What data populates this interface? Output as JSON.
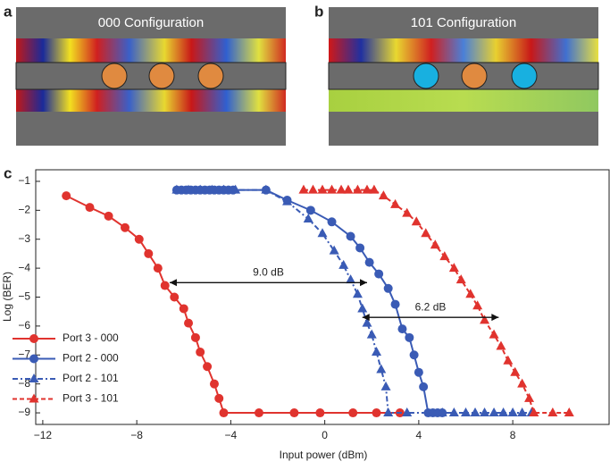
{
  "panels": [
    {
      "label": "a",
      "title": "000 Configuration"
    },
    {
      "label": "b",
      "title": "101 Configuration"
    }
  ],
  "chart_data": {
    "type": "line",
    "panel_label": "c",
    "xlabel": "Input power (dBm)",
    "ylabel": "Log (BER)",
    "xlim": [
      -12.3,
      12.1
    ],
    "ylim": [
      -9.4,
      -0.6
    ],
    "xticks": [
      {
        "value": -12,
        "label": "−12"
      },
      {
        "value": -8,
        "label": "−8"
      },
      {
        "value": -4,
        "label": "−4"
      },
      0,
      4,
      8
    ],
    "yticks": [
      {
        "value": -1,
        "label": "−1"
      },
      {
        "value": -2,
        "label": "−2"
      },
      {
        "value": -3,
        "label": "−3"
      },
      {
        "value": -4,
        "label": "−4"
      },
      {
        "value": -5,
        "label": "−5"
      },
      {
        "value": -6,
        "label": "−6"
      },
      {
        "value": -7,
        "label": "−7"
      },
      {
        "value": -8,
        "label": "−8"
      },
      {
        "value": -9,
        "label": "−9"
      }
    ],
    "legend": "lower left",
    "series": [
      {
        "name": "Port 3 - 000",
        "color": "#e0332e",
        "linestyle": "solid",
        "marker": "circle",
        "x": [
          -11,
          -10,
          -9.2,
          -8.5,
          -7.9,
          -7.5,
          -7.1,
          -6.8,
          -6.4,
          -6.0,
          -5.8,
          -5.5,
          -5.3,
          -5.0,
          -4.7,
          -4.5,
          -4.3,
          -2.8,
          -1.3,
          -0.2,
          1.2,
          2.2,
          3.2
        ],
        "values": [
          -1.5,
          -1.9,
          -2.2,
          -2.6,
          -3.0,
          -3.5,
          -4.0,
          -4.6,
          -5.0,
          -5.4,
          -5.9,
          -6.4,
          -6.9,
          -7.4,
          -8.0,
          -8.5,
          -9,
          -9,
          -9,
          -9,
          -9,
          -9,
          -9
        ]
      },
      {
        "name": "Port 2 - 000",
        "color": "#3a5bb5",
        "linestyle": "solid",
        "marker": "circle",
        "x": [
          -6.3,
          -6.1,
          -5.9,
          -5.7,
          -5.5,
          -5.3,
          -5.1,
          -4.9,
          -4.7,
          -4.5,
          -4.3,
          -4.1,
          -3.9,
          -2.5,
          -1.6,
          -0.6,
          0.3,
          1.1,
          1.5,
          1.9,
          2.3,
          2.7,
          3.0,
          3.3,
          3.6,
          3.8,
          4.0,
          4.2,
          4.4,
          4.6,
          4.8,
          5.0
        ],
        "values": [
          -1.3,
          -1.3,
          -1.3,
          -1.3,
          -1.3,
          -1.3,
          -1.3,
          -1.3,
          -1.3,
          -1.3,
          -1.3,
          -1.3,
          -1.3,
          -1.3,
          -1.65,
          -2.0,
          -2.4,
          -2.9,
          -3.3,
          -3.8,
          -4.2,
          -4.7,
          -5.25,
          -6.1,
          -6.4,
          -7.0,
          -7.6,
          -8.1,
          -9,
          -9,
          -9,
          -9
        ]
      },
      {
        "name": "Port 2 - 101",
        "color": "#3a5bb5",
        "linestyle": "dashdot",
        "marker": "triangle",
        "x": [
          -6.3,
          -5.8,
          -5.3,
          -4.8,
          -4.3,
          -3.8,
          -2.5,
          -1.6,
          -0.7,
          -0.1,
          0.4,
          0.8,
          1.1,
          1.4,
          1.6,
          1.8,
          2.0,
          2.2,
          2.4,
          2.6,
          2.7,
          3.5,
          5.0,
          5.5,
          6.0,
          6.4,
          6.8,
          7.2,
          7.6,
          8.0,
          8.4,
          8.8
        ],
        "values": [
          -1.3,
          -1.3,
          -1.3,
          -1.3,
          -1.3,
          -1.3,
          -1.3,
          -1.7,
          -2.3,
          -2.8,
          -3.4,
          -3.9,
          -4.4,
          -4.9,
          -5.4,
          -5.9,
          -6.3,
          -6.9,
          -7.5,
          -8.1,
          -9,
          -9,
          -9,
          -9,
          -9,
          -9,
          -9,
          -9,
          -9,
          -9,
          -9,
          -9
        ]
      },
      {
        "name": "Port 3 - 101",
        "color": "#e0332e",
        "linestyle": "dashed",
        "marker": "triangle",
        "x": [
          -0.9,
          -0.5,
          -0.1,
          0.3,
          0.7,
          1.0,
          1.4,
          1.8,
          2.1,
          2.5,
          3.0,
          3.5,
          3.9,
          4.3,
          4.7,
          5.1,
          5.5,
          5.8,
          6.2,
          6.5,
          6.8,
          7.2,
          7.5,
          7.8,
          8.1,
          8.4,
          8.7,
          8.9,
          9.7,
          10.4
        ],
        "values": [
          -1.3,
          -1.3,
          -1.3,
          -1.3,
          -1.3,
          -1.3,
          -1.3,
          -1.3,
          -1.3,
          -1.5,
          -1.8,
          -2.1,
          -2.4,
          -2.8,
          -3.2,
          -3.6,
          -4.0,
          -4.4,
          -4.9,
          -5.3,
          -5.8,
          -6.3,
          -6.7,
          -7.2,
          -7.6,
          -8.0,
          -8.5,
          -9,
          -9,
          -9
        ]
      }
    ],
    "annotations": [
      {
        "text": "9.0 dB",
        "x": [
          -6.6,
          1.8
        ],
        "y": -4.5
      },
      {
        "text": "6.2 dB",
        "x": [
          1.6,
          7.4
        ],
        "y": -5.7
      }
    ]
  }
}
